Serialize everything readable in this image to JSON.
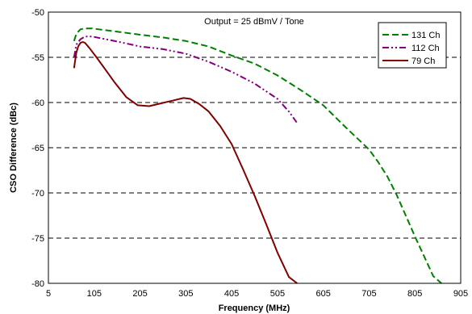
{
  "chart_data": {
    "type": "line",
    "title": "",
    "annotation": "Output = 25 dBmV / Tone",
    "xlabel": "Frequency (MHz)",
    "ylabel": "CSO Difference (dBc)",
    "xlim": [
      5,
      905
    ],
    "ylim": [
      -80,
      -50
    ],
    "xticks": [
      "5",
      "105",
      "205",
      "305",
      "405",
      "505",
      "605",
      "705",
      "805",
      "905"
    ],
    "yticks": [
      "-50",
      "-55",
      "-60",
      "-65",
      "-70",
      "-75",
      "-80"
    ],
    "grid": "horizontal dashed",
    "legend_position": "top-right",
    "series": [
      {
        "name": "131 Ch",
        "color": "#008000",
        "dash": "dashed",
        "x": [
          61,
          66,
          75,
          85,
          100,
          130,
          160,
          205,
          255,
          305,
          355,
          405,
          455,
          505,
          555,
          605,
          655,
          705,
          725,
          745,
          765,
          785,
          805,
          825,
          845,
          863
        ],
        "y": [
          -53.2,
          -52.4,
          -51.9,
          -51.8,
          -51.8,
          -52.0,
          -52.2,
          -52.5,
          -52.8,
          -53.2,
          -53.8,
          -54.8,
          -55.7,
          -57.0,
          -58.6,
          -60.3,
          -62.8,
          -65.2,
          -66.6,
          -68.2,
          -70.2,
          -72.5,
          -74.8,
          -77.0,
          -79.2,
          -80.0
        ]
      },
      {
        "name": "112 Ch",
        "color": "#800080",
        "dash": "dash-dot-dot",
        "x": [
          61,
          66,
          75,
          85,
          100,
          130,
          160,
          205,
          255,
          305,
          355,
          405,
          455,
          505,
          530,
          547
        ],
        "y": [
          -55.0,
          -53.6,
          -53.0,
          -52.7,
          -52.7,
          -53.0,
          -53.3,
          -53.8,
          -54.1,
          -54.6,
          -55.5,
          -56.6,
          -57.9,
          -59.6,
          -61.0,
          -62.2
        ]
      },
      {
        "name": "79 Ch",
        "color": "#800000",
        "dash": "solid",
        "x": [
          61,
          63,
          66,
          70,
          75,
          80,
          85,
          95,
          110,
          130,
          150,
          175,
          200,
          225,
          250,
          275,
          300,
          315,
          335,
          355,
          380,
          405,
          430,
          455,
          480,
          505,
          530,
          548
        ],
        "y": [
          -56.2,
          -55.5,
          -54.5,
          -53.8,
          -53.4,
          -53.3,
          -53.4,
          -54.0,
          -55.0,
          -56.4,
          -57.8,
          -59.4,
          -60.3,
          -60.4,
          -60.1,
          -59.8,
          -59.5,
          -59.6,
          -60.2,
          -61.0,
          -62.6,
          -64.6,
          -67.4,
          -70.3,
          -73.4,
          -76.6,
          -79.3,
          -80.0
        ]
      }
    ]
  }
}
